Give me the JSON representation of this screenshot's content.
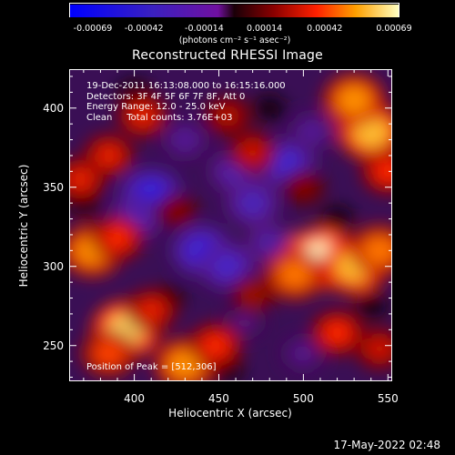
{
  "colorbar": {
    "ticks": [
      "-0.00069",
      "-0.00042",
      "-0.00014",
      "0.00014",
      "0.00042",
      "0.00069"
    ],
    "unit_label": "(photons cm⁻² s⁻¹ asec⁻²)"
  },
  "chart_data": {
    "type": "heatmap",
    "title": "Reconstructed RHESSI Image",
    "xlabel": "Heliocentric X (arcsec)",
    "ylabel": "Heliocentric Y (arcsec)",
    "xlim": [
      362,
      552
    ],
    "ylim": [
      228,
      424
    ],
    "xticks": [
      "400",
      "450",
      "500",
      "550"
    ],
    "yticks": [
      "250",
      "300",
      "350",
      "400"
    ],
    "colorbar_range": [
      -0.00069,
      0.00069
    ],
    "annotations": [
      "19-Dec-2011 16:13:08.000 to 16:15:16.000",
      "Detectors: 3F 4F 5F 6F 7F 8F, Att 0",
      "Energy Range: 12.0 - 25.0 keV",
      "Clean     Total counts: 3.76E+03"
    ],
    "peak": {
      "x": 512,
      "y": 306,
      "label": "Position of Peak = [512,306]"
    },
    "hot_regions": [
      {
        "x": 510,
        "y": 305,
        "v": 1.0
      },
      {
        "x": 530,
        "y": 300,
        "v": 0.85
      },
      {
        "x": 495,
        "y": 295,
        "v": 0.7
      },
      {
        "x": 545,
        "y": 310,
        "v": 0.7
      },
      {
        "x": 540,
        "y": 385,
        "v": 0.85
      },
      {
        "x": 530,
        "y": 405,
        "v": 0.75
      },
      {
        "x": 550,
        "y": 360,
        "v": 0.55
      },
      {
        "x": 395,
        "y": 260,
        "v": 0.9
      },
      {
        "x": 385,
        "y": 245,
        "v": 0.6
      },
      {
        "x": 410,
        "y": 272,
        "v": 0.5
      },
      {
        "x": 430,
        "y": 238,
        "v": 0.75
      },
      {
        "x": 448,
        "y": 250,
        "v": 0.55
      },
      {
        "x": 375,
        "y": 310,
        "v": 0.75
      },
      {
        "x": 390,
        "y": 318,
        "v": 0.55
      },
      {
        "x": 385,
        "y": 370,
        "v": 0.5
      },
      {
        "x": 368,
        "y": 355,
        "v": 0.5
      },
      {
        "x": 405,
        "y": 395,
        "v": 0.5
      },
      {
        "x": 470,
        "y": 372,
        "v": 0.45
      },
      {
        "x": 455,
        "y": 395,
        "v": 0.4
      },
      {
        "x": 520,
        "y": 258,
        "v": 0.55
      },
      {
        "x": 545,
        "y": 248,
        "v": 0.45
      },
      {
        "x": 470,
        "y": 282,
        "v": 0.35
      },
      {
        "x": 425,
        "y": 335,
        "v": 0.3
      },
      {
        "x": 500,
        "y": 350,
        "v": 0.3
      }
    ],
    "cold_regions": [
      {
        "x": 410,
        "y": 345,
        "v": -0.75
      },
      {
        "x": 400,
        "y": 330,
        "v": -0.55
      },
      {
        "x": 440,
        "y": 310,
        "v": -0.7
      },
      {
        "x": 455,
        "y": 300,
        "v": -0.6
      },
      {
        "x": 470,
        "y": 340,
        "v": -0.55
      },
      {
        "x": 490,
        "y": 365,
        "v": -0.65
      },
      {
        "x": 460,
        "y": 360,
        "v": -0.5
      },
      {
        "x": 430,
        "y": 380,
        "v": -0.4
      },
      {
        "x": 480,
        "y": 315,
        "v": -0.45
      },
      {
        "x": 505,
        "y": 385,
        "v": -0.4
      },
      {
        "x": 500,
        "y": 245,
        "v": -0.35
      },
      {
        "x": 465,
        "y": 265,
        "v": -0.3
      }
    ]
  },
  "footer": {
    "timestamp": "17-May-2022 02:48"
  }
}
